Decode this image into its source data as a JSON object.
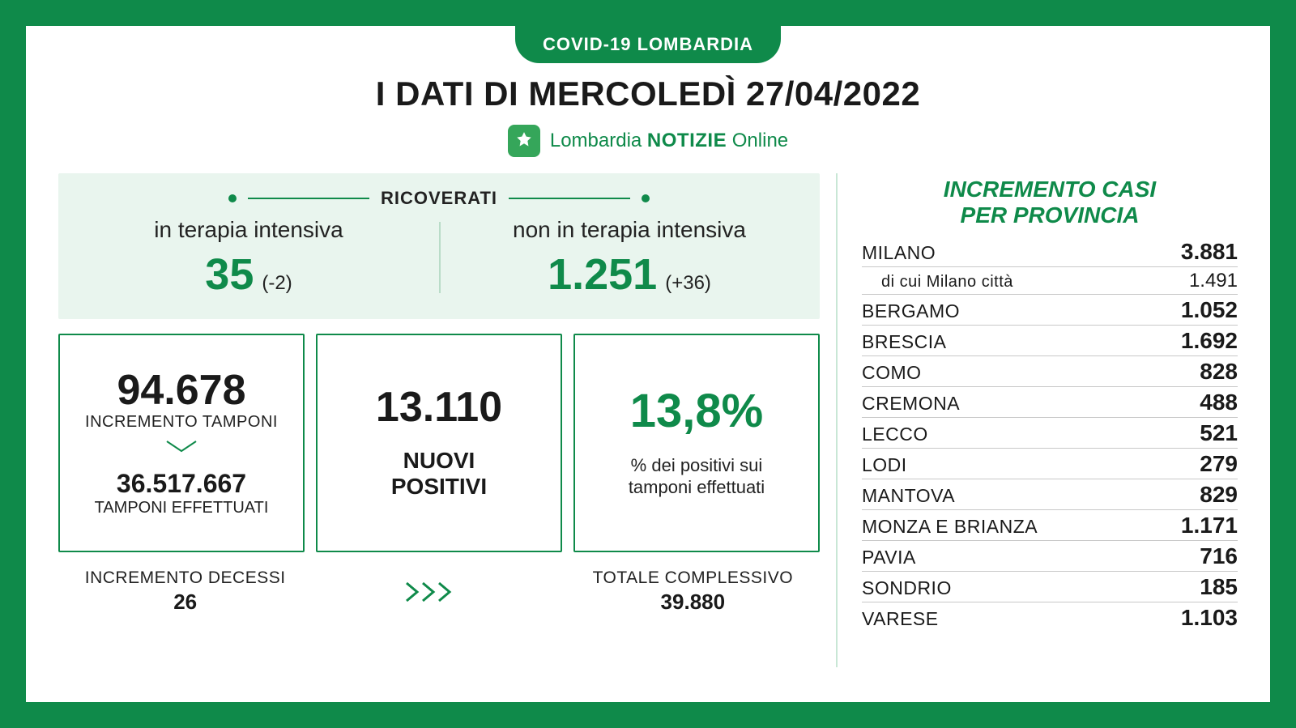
{
  "colors": {
    "green": "#0f8a4a",
    "green_light": "#e9f5ee",
    "border_light": "#c9e7d6",
    "text": "#1a1a1a",
    "rule": "#c8c8c8",
    "white": "#ffffff",
    "logo_bg": "#35a65a"
  },
  "header": {
    "pill": "COVID-19 LOMBARDIA",
    "title": "I DATI DI MERCOLEDÌ 27/04/2022",
    "logo_pre": "Lombardia ",
    "logo_bold": "NOTIZIE",
    "logo_post": " Online"
  },
  "ricoverati": {
    "title": "RICOVERATI",
    "intensive": {
      "label": "in terapia intensiva",
      "value": "35",
      "delta": "(-2)"
    },
    "non_intensive": {
      "label": "non in terapia intensiva",
      "value": "1.251",
      "delta": "(+36)"
    }
  },
  "stats": {
    "tamponi": {
      "increment_value": "94.678",
      "increment_label": "INCREMENTO TAMPONI",
      "total_value": "36.517.667",
      "total_label": "TAMPONI EFFETTUATI"
    },
    "positivi": {
      "value": "13.110",
      "label_l1": "NUOVI",
      "label_l2": "POSITIVI"
    },
    "rate": {
      "value": "13,8%",
      "desc_l1": "% dei positivi sui",
      "desc_l2": "tamponi effettuati"
    }
  },
  "bottom": {
    "deaths_label": "INCREMENTO DECESSI",
    "deaths_value": "26",
    "total_label": "TOTALE COMPLESSIVO",
    "total_value": "39.880"
  },
  "provinces": {
    "title_l1": "INCREMENTO CASI",
    "title_l2": "PER PROVINCIA",
    "rows": [
      {
        "name": "MILANO",
        "value": "3.881"
      },
      {
        "name": "di cui Milano città",
        "value": "1.491",
        "sub": true
      },
      {
        "name": "BERGAMO",
        "value": "1.052"
      },
      {
        "name": "BRESCIA",
        "value": "1.692"
      },
      {
        "name": "COMO",
        "value": "828"
      },
      {
        "name": "CREMONA",
        "value": "488"
      },
      {
        "name": "LECCO",
        "value": "521"
      },
      {
        "name": "LODI",
        "value": "279"
      },
      {
        "name": "MANTOVA",
        "value": "829"
      },
      {
        "name": "MONZA E BRIANZA",
        "value": "1.171"
      },
      {
        "name": "PAVIA",
        "value": "716"
      },
      {
        "name": "SONDRIO",
        "value": "185"
      },
      {
        "name": "VARESE",
        "value": "1.103"
      }
    ]
  }
}
